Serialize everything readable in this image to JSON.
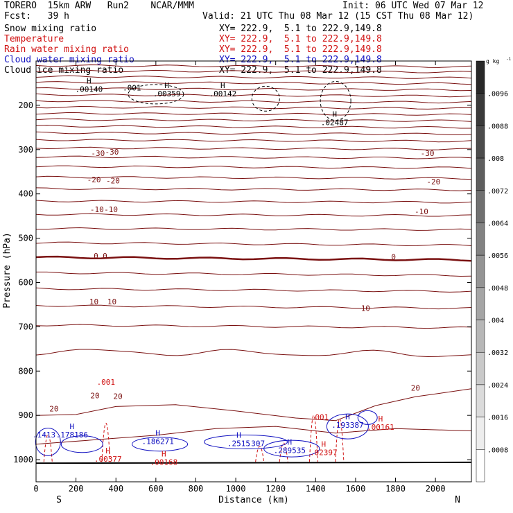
{
  "header": {
    "model": "TORERO  15km ARW   Run2    NCAR/MMM",
    "init": "Init: 06 UTC Wed 07 Mar 12",
    "fcst": "Fcst:   39 h",
    "valid": "Valid: 21 UTC Thu 08 Mar 12 (15 CST Thu 08 Mar 12)"
  },
  "fields": [
    {
      "name": "Snow mixing ratio",
      "xy": "XY= 222.9,  5.1 to 222.9,149.8",
      "color": "#000000"
    },
    {
      "name": "Temperature",
      "xy": "XY= 222.9,  5.1 to 222.9,149.8",
      "color": "#d01010"
    },
    {
      "name": "Rain water mixing ratio",
      "xy": "XY= 222.9,  5.1 to 222.9,149.8",
      "color": "#d01010"
    },
    {
      "name": "Cloud water mixing ratio",
      "xy": "XY= 222.9,  5.1 to 222.9,149.8",
      "color": "#1010c0"
    },
    {
      "name": "Cloud ice mixing ratio",
      "xy": "XY= 222.9,  5.1 to 222.9,149.8",
      "color": "#000000"
    }
  ],
  "chart_data": {
    "type": "cross-section contour",
    "xlabel": "Distance (km)",
    "ylabel": "Pressure (hPa)",
    "xlim": [
      0,
      2180
    ],
    "ylim": [
      1050,
      100
    ],
    "x_ticks": [
      0,
      200,
      400,
      600,
      800,
      1000,
      1200,
      1400,
      1600,
      1800,
      2000
    ],
    "y_ticks": [
      200,
      300,
      400,
      500,
      600,
      700,
      800,
      900,
      1000
    ],
    "end_labels": {
      "left": "S",
      "right": "N"
    },
    "colorbar": {
      "unit": "g kg",
      "unit_exp": "-1",
      "labels": [
        ".0096",
        ".0088",
        ".008",
        ".0072",
        ".0064",
        ".0056",
        ".0048",
        ".004",
        ".0032",
        ".0024",
        ".0016",
        ".0008"
      ]
    },
    "temperature_labels": [
      {
        "text": "-30",
        "x": 310,
        "p": 308
      },
      {
        "text": "-30",
        "x": 380,
        "p": 305
      },
      {
        "text": "-30",
        "x": 1960,
        "p": 308
      },
      {
        "text": "-20",
        "x": 290,
        "p": 368
      },
      {
        "text": "-20",
        "x": 385,
        "p": 370
      },
      {
        "text": "-20",
        "x": 1990,
        "p": 372
      },
      {
        "text": "-10",
        "x": 305,
        "p": 435
      },
      {
        "text": "-10",
        "x": 375,
        "p": 435
      },
      {
        "text": "-10",
        "x": 1930,
        "p": 440
      },
      {
        "text": "0",
        "x": 300,
        "p": 540
      },
      {
        "text": "0",
        "x": 345,
        "p": 540
      },
      {
        "text": "0",
        "x": 1790,
        "p": 542
      },
      {
        "text": "10",
        "x": 290,
        "p": 643
      },
      {
        "text": "10",
        "x": 380,
        "p": 643
      },
      {
        "text": "10",
        "x": 1650,
        "p": 658
      },
      {
        "text": "20",
        "x": 295,
        "p": 855
      },
      {
        "text": "20",
        "x": 410,
        "p": 857
      },
      {
        "text": "20",
        "x": 1900,
        "p": 838
      },
      {
        "text": "20",
        "x": 90,
        "p": 885
      }
    ],
    "maxima": [
      {
        "label": "H",
        "value": ".00140",
        "x": 265,
        "p": 165,
        "field": "snow"
      },
      {
        "label": "H",
        "value": ".00359",
        "x": 655,
        "p": 175,
        "field": "snow"
      },
      {
        "label": "H",
        "value": ".00142",
        "x": 935,
        "p": 175,
        "field": "snow"
      },
      {
        "label": "H",
        "value": ".02487",
        "x": 1495,
        "p": 240,
        "field": "snow"
      },
      {
        "label": "",
        "value": ".001",
        "x": 480,
        "p": 162,
        "field": "snow"
      },
      {
        "label": "",
        "value": ".001",
        "x": 350,
        "p": 826,
        "field": "rain"
      },
      {
        "label": "",
        "value": ".001",
        "x": 1420,
        "p": 905,
        "field": "rain"
      },
      {
        "label": "H",
        "value": ".00161",
        "x": 1725,
        "p": 928,
        "field": "rain"
      },
      {
        "label": "H",
        "value": ".00377",
        "x": 360,
        "p": 1000,
        "field": "rain"
      },
      {
        "label": "H",
        "value": ".00168",
        "x": 640,
        "p": 1007,
        "field": "rain"
      },
      {
        "label": "H",
        "value": ".02397",
        "x": 1440,
        "p": 985,
        "field": "rain"
      },
      {
        "label": "",
        "value": ".1413",
        "x": 40,
        "p": 945,
        "field": "cloud"
      },
      {
        "label": "H",
        "value": ".178186",
        "x": 180,
        "p": 945,
        "field": "cloud"
      },
      {
        "label": "H",
        "value": ".186271",
        "x": 610,
        "p": 960,
        "field": "cloud"
      },
      {
        "label": "H",
        "value": ".2515",
        "x": 1015,
        "p": 965,
        "field": "cloud"
      },
      {
        "label": "",
        "value": ".307",
        "x": 1100,
        "p": 965,
        "field": "cloud"
      },
      {
        "label": "H",
        "value": ".289535",
        "x": 1270,
        "p": 980,
        "field": "cloud"
      },
      {
        "label": "H",
        "value": ".193387",
        "x": 1560,
        "p": 923,
        "field": "cloud"
      }
    ]
  }
}
